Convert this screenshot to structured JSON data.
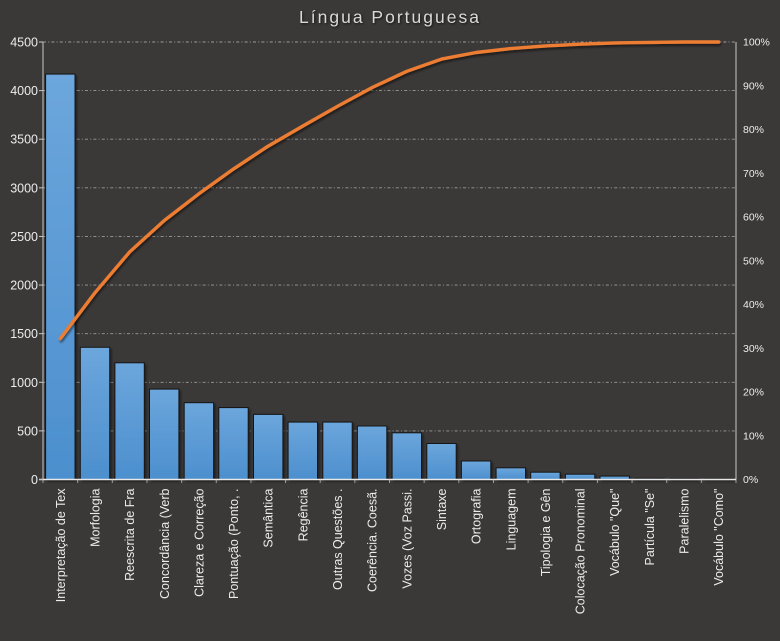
{
  "chart_data": {
    "type": "bar",
    "subtype": "pareto",
    "title": "Língua Portuguesa",
    "categories": [
      "Interpretação de Tex",
      "Morfologia",
      "Reescrita de Fra",
      "Concordância (Verb",
      "Clareza e Correção",
      "Pontuação (Ponto, .",
      "Semântica",
      "Regência",
      "Outras Questões .",
      "Coerência. Coesã.",
      "Vozes (Voz Passi.",
      "Sintaxe",
      "Ortografia",
      "Linguagem",
      "Tipologia e Gên",
      "Colocação Pronominal",
      "Vocábulo \"Que\"",
      "Partícula \"Se\"",
      "Paralelismo",
      "Vocábulo \"Como\""
    ],
    "values": [
      4170,
      1360,
      1200,
      930,
      790,
      740,
      670,
      590,
      590,
      550,
      480,
      370,
      190,
      120,
      75,
      55,
      35,
      12,
      8,
      5
    ],
    "cumulative_pct": [
      32.2,
      42.7,
      52.0,
      59.2,
      65.3,
      71.0,
      76.2,
      80.8,
      85.3,
      89.6,
      93.3,
      96.1,
      97.6,
      98.5,
      99.1,
      99.5,
      99.8,
      99.9,
      100.0,
      100.0
    ],
    "left_axis": {
      "min": 0,
      "max": 4500,
      "step": 500,
      "tick_labels": [
        "0",
        "500",
        "1000",
        "1500",
        "2000",
        "2500",
        "3000",
        "3500",
        "4000",
        "4500"
      ]
    },
    "right_axis": {
      "min": 0,
      "max": 100,
      "step": 10,
      "tick_labels": [
        "0%",
        "10%",
        "20%",
        "30%",
        "40%",
        "50%",
        "60%",
        "70%",
        "80%",
        "90%",
        "100%"
      ]
    },
    "grid": "horizontal-dashed",
    "legend": "none"
  },
  "colors": {
    "background": "#3B3938",
    "bar_fill_top": "#6CA6DC",
    "bar_fill_bottom": "#4C8FCE",
    "bar_border": "#141414",
    "line": "#ED7D31",
    "gridline": "#ACACAC",
    "axis": "#C9C9C9",
    "baseline": "#E8E8E8",
    "tick_text": "#ECECEC",
    "title_text": "#D9D9D9"
  }
}
